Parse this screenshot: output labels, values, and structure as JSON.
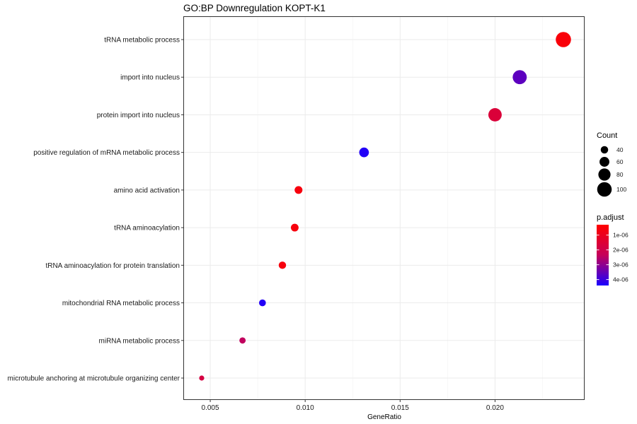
{
  "chart_data": {
    "type": "scatter",
    "title": "GO:BP Downregulation KOPT-K1",
    "xlabel": "GeneRatio",
    "ylabel": "",
    "xlim": [
      0.0036,
      0.0247
    ],
    "x_ticks": [
      0.005,
      0.01,
      0.015,
      0.02
    ],
    "x_tick_labels": [
      "0.005",
      "0.010",
      "0.015",
      "0.020"
    ],
    "grid": true,
    "categories": [
      "tRNA metabolic process",
      "import into nucleus",
      "protein import into nucleus",
      "positive regulation of mRNA metabolic process",
      "amino acid activation",
      "tRNA aminoacylation",
      "tRNA aminoacylation for protein translation",
      "mitochondrial RNA metabolic process",
      "miRNA metabolic process",
      "microtubule anchoring at microtubule organizing center"
    ],
    "points": [
      {
        "term": "tRNA metabolic process",
        "gene_ratio": 0.0236,
        "count": 106,
        "p_adjust": 5e-07
      },
      {
        "term": "import into nucleus",
        "gene_ratio": 0.0213,
        "count": 96,
        "p_adjust": 3.6e-06
      },
      {
        "term": "protein import into nucleus",
        "gene_ratio": 0.02,
        "count": 90,
        "p_adjust": 1.6e-06
      },
      {
        "term": "positive regulation of mRNA metabolic process",
        "gene_ratio": 0.0131,
        "count": 59,
        "p_adjust": 4.3e-06
      },
      {
        "term": "amino acid activation",
        "gene_ratio": 0.00965,
        "count": 43,
        "p_adjust": 6e-07
      },
      {
        "term": "tRNA aminoacylation",
        "gene_ratio": 0.00945,
        "count": 42,
        "p_adjust": 6e-07
      },
      {
        "term": "tRNA aminoacylation for protein translation",
        "gene_ratio": 0.0088,
        "count": 39,
        "p_adjust": 6e-07
      },
      {
        "term": "mitochondrial RNA metabolic process",
        "gene_ratio": 0.00775,
        "count": 35,
        "p_adjust": 4.3e-06
      },
      {
        "term": "miRNA metabolic process",
        "gene_ratio": 0.0067,
        "count": 30,
        "p_adjust": 2.4e-06
      },
      {
        "term": "microtubule anchoring at microtubule organizing center",
        "gene_ratio": 0.00455,
        "count": 20,
        "p_adjust": 1.8e-06
      }
    ],
    "legend_position": "right",
    "size_legend": {
      "title": "Count",
      "values": [
        40,
        60,
        80,
        100
      ],
      "labels": [
        "40",
        "60",
        "80",
        "100"
      ]
    },
    "color_legend": {
      "title": "p.adjust",
      "low_color": "#ff0000",
      "high_color": "#0000ff",
      "ticks": [
        1e-06,
        2e-06,
        3e-06,
        4e-06
      ],
      "tick_labels": [
        "1e-06",
        "2e-06",
        "3e-06",
        "4e-06"
      ],
      "range": [
        3e-07,
        4.4e-06
      ]
    }
  }
}
